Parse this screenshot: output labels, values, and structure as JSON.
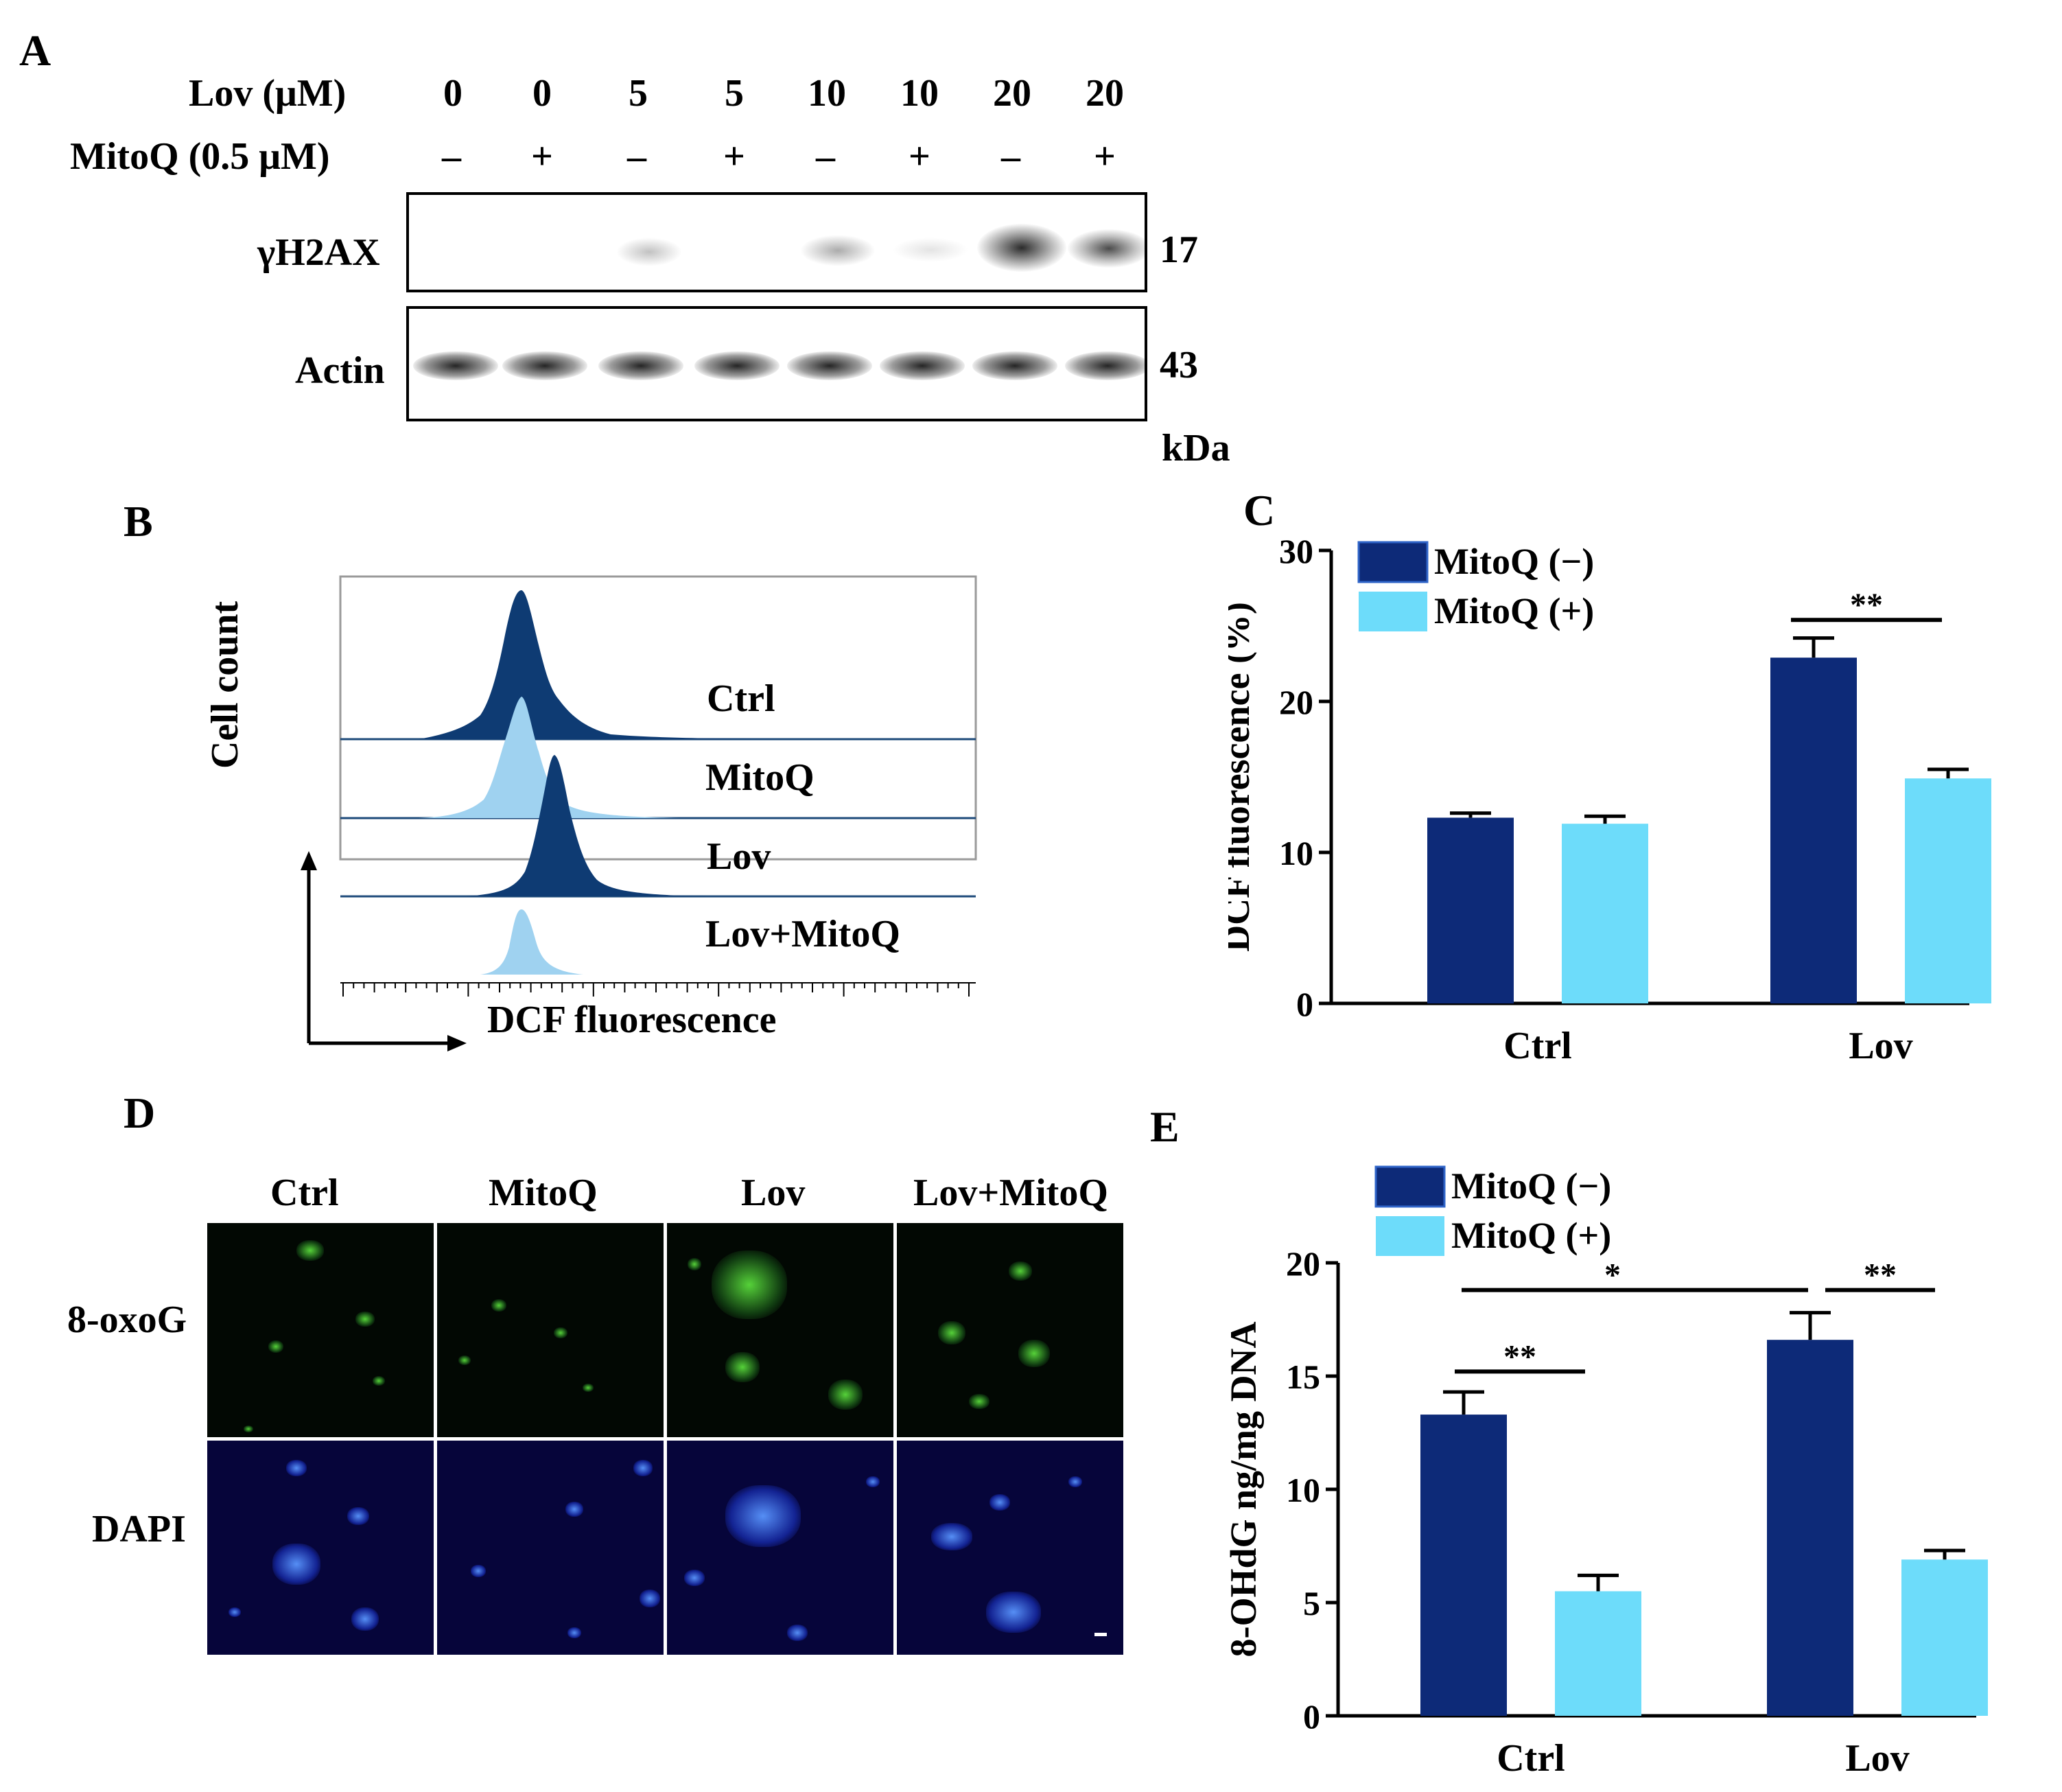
{
  "panel_letters": {
    "a": "A",
    "b": "B",
    "c": "C",
    "d": "D",
    "e": "E"
  },
  "western": {
    "lov_label": "Lov (μM)",
    "mitoq_label": "MitoQ (0.5 μM)",
    "lov_values": [
      "0",
      "0",
      "5",
      "5",
      "10",
      "10",
      "20",
      "20"
    ],
    "mitoq_values": [
      "–",
      "+",
      "–",
      "+",
      "–",
      "+",
      "–",
      "+"
    ],
    "blot1_label": "γH2AX",
    "blot1_kda": "17",
    "blot2_label": "Actin",
    "blot2_kda": "43",
    "kda_unit": "kDa"
  },
  "flow": {
    "y_label": "Cell count",
    "x_label": "DCF fluorescence",
    "rows": [
      "Ctrl",
      "MitoQ",
      "Lov",
      "Lov+MitoQ"
    ]
  },
  "colors": {
    "mitoq_minus": "#0d2a78",
    "mitoq_plus": "#6ddcfa",
    "flow_dark": "#0e3b73",
    "flow_light": "#9fd2f0"
  },
  "micro": {
    "columns": [
      "Ctrl",
      "MitoQ",
      "Lov",
      "Lov+MitoQ"
    ],
    "rows": [
      "8-oxoG",
      "DAPI"
    ]
  },
  "chart_data": [
    {
      "type": "bar",
      "panel": "C",
      "ylabel": "DCF fluorescence (%)",
      "categories": [
        "Ctrl",
        "Lov"
      ],
      "ylim": [
        0,
        30
      ],
      "yticks": [
        "0",
        "10",
        "20",
        "30"
      ],
      "series": [
        {
          "name": "MitoQ (−)",
          "values": [
            12.3,
            22.9
          ],
          "errors": [
            0.3,
            1.3
          ]
        },
        {
          "name": "MitoQ (+)",
          "values": [
            11.9,
            14.9
          ],
          "errors": [
            0.5,
            0.6
          ]
        }
      ],
      "annotations": [
        {
          "text": "**",
          "between": "Lov"
        }
      ],
      "legend": "top-left"
    },
    {
      "type": "bar",
      "panel": "E",
      "ylabel": "8-OHdG ng/mg DNA",
      "categories": [
        "Ctrl",
        "Lov"
      ],
      "ylim": [
        0,
        20
      ],
      "yticks": [
        "0",
        "5",
        "10",
        "15",
        "20"
      ],
      "series": [
        {
          "name": "MitoQ (−)",
          "values": [
            13.3,
            16.6
          ],
          "errors": [
            1.0,
            1.2
          ]
        },
        {
          "name": "MitoQ (+)",
          "values": [
            5.5,
            6.9
          ],
          "errors": [
            0.7,
            0.4
          ]
        }
      ],
      "annotations": [
        {
          "text": "**",
          "between": "Ctrl"
        },
        {
          "text": "**",
          "between": "Lov"
        },
        {
          "text": "*",
          "between": "Ctrl-Lov"
        }
      ],
      "legend": "top-left"
    }
  ]
}
